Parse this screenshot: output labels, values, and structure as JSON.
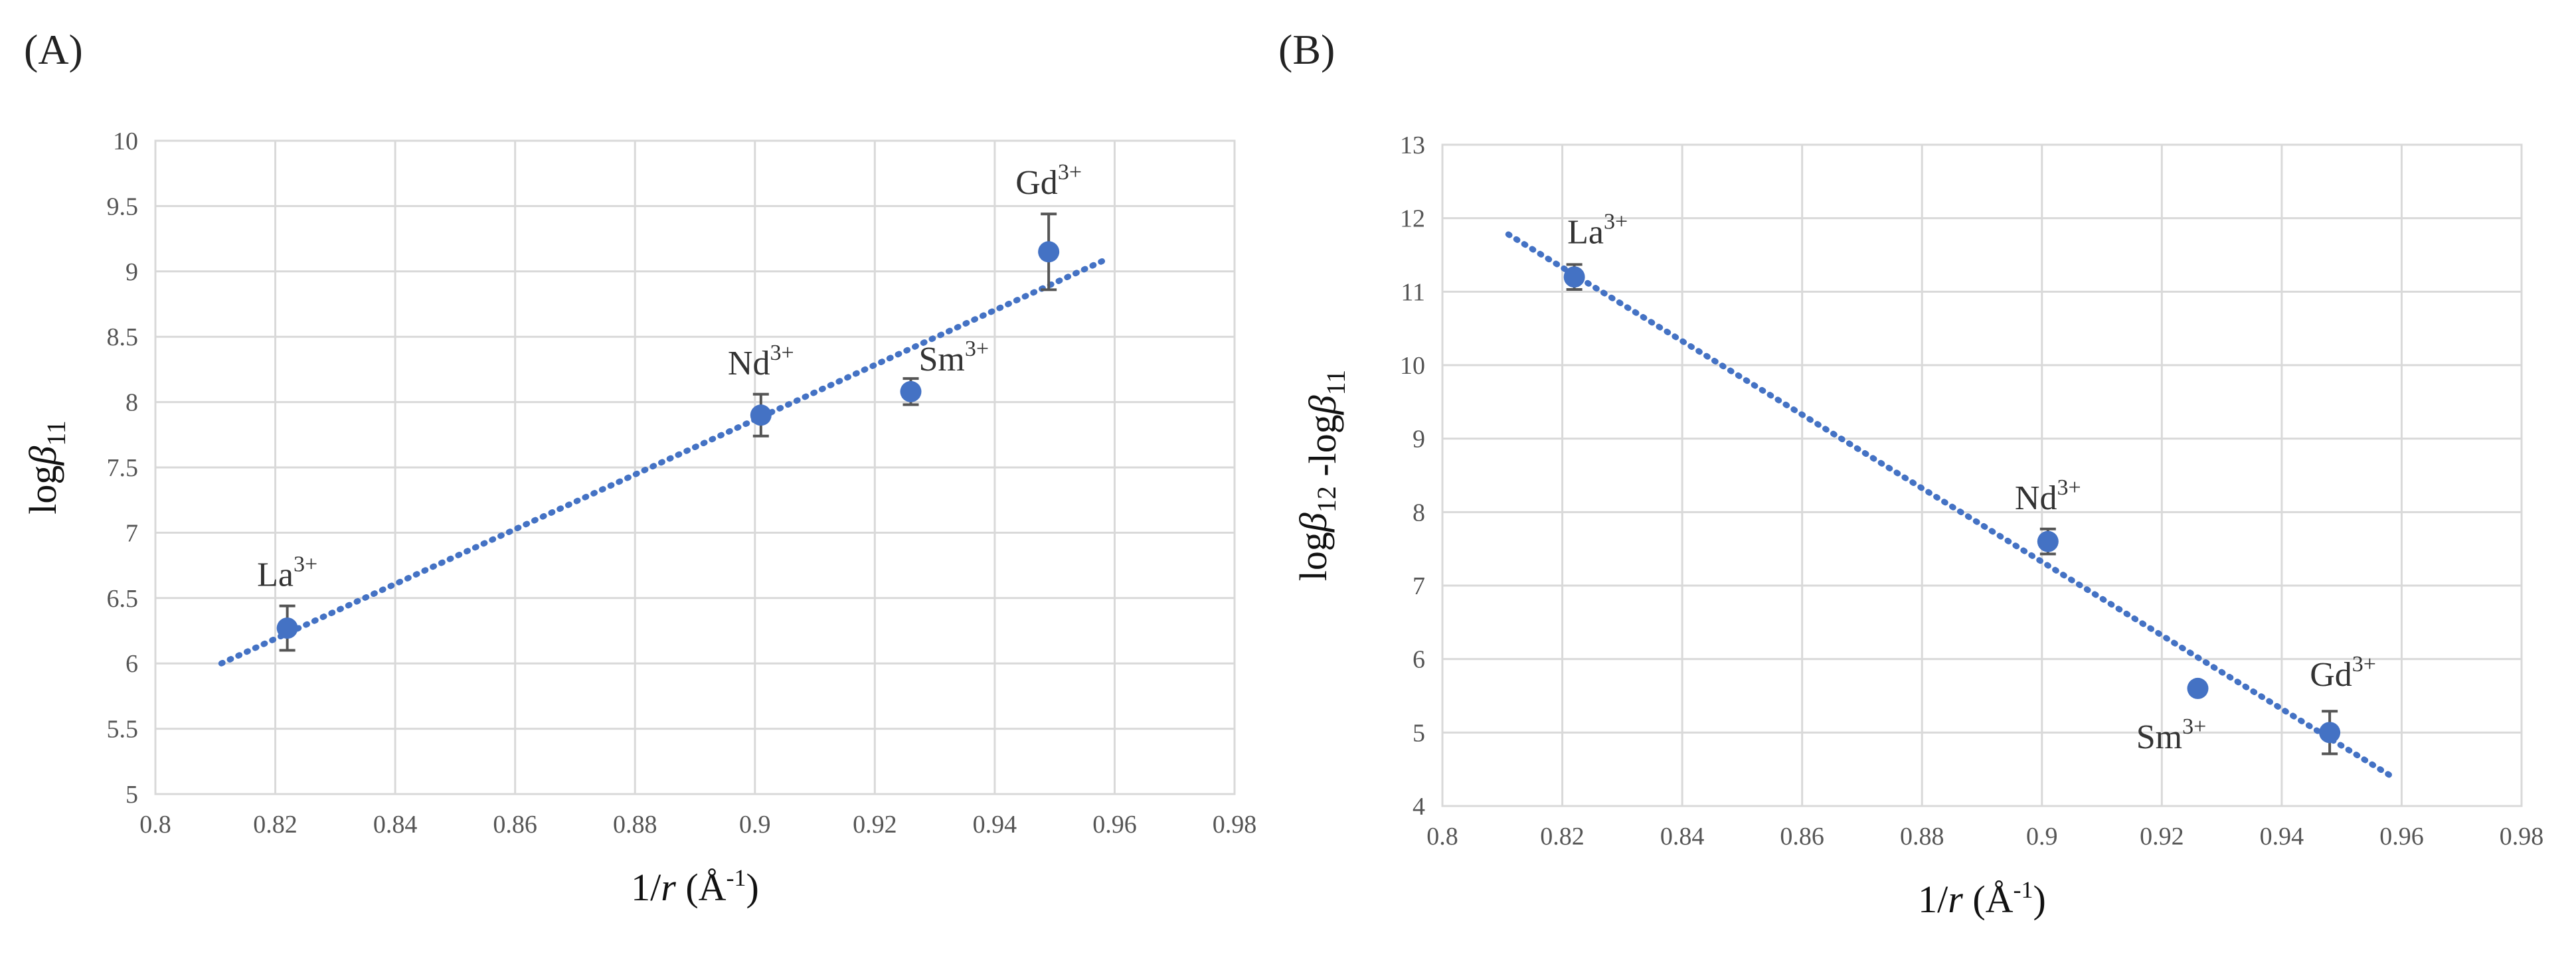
{
  "panels": {
    "a": {
      "label": "(A)"
    },
    "b": {
      "label": "(B)"
    }
  },
  "colors": {
    "series": "#4472c4",
    "grid": "#d9d9d9",
    "error_bar": "#555555"
  },
  "chart_data": [
    {
      "type": "scatter",
      "id": "A",
      "xlabel": "1/r (Å-1)",
      "ylabel": "logβ11",
      "xlim": [
        0.8,
        0.98
      ],
      "ylim": [
        5,
        10
      ],
      "x_ticks": [
        "0.8",
        "0.82",
        "0.84",
        "0.86",
        "0.88",
        "0.9",
        "0.92",
        "0.94",
        "0.96",
        "0.98"
      ],
      "y_ticks": [
        "5",
        "5.5",
        "6",
        "6.5",
        "7",
        "7.5",
        "8",
        "8.5",
        "9",
        "9.5",
        "10"
      ],
      "grid": true,
      "points": [
        {
          "label": "La",
          "charge": "3+",
          "x": 0.822,
          "y": 6.27,
          "err": 0.17
        },
        {
          "label": "Nd",
          "charge": "3+",
          "x": 0.901,
          "y": 7.9,
          "err": 0.16
        },
        {
          "label": "Sm",
          "charge": "3+",
          "x": 0.926,
          "y": 8.08,
          "err": 0.1
        },
        {
          "label": "Gd",
          "charge": "3+",
          "x": 0.949,
          "y": 9.15,
          "err": 0.29
        }
      ],
      "trendline": {
        "type": "linear",
        "x": [
          0.811,
          0.958
        ],
        "y": [
          6.0,
          9.08
        ]
      }
    },
    {
      "type": "scatter",
      "id": "B",
      "xlabel": "1/r (Å-1)",
      "ylabel": "logβ12 -logβ11",
      "xlim": [
        0.8,
        0.98
      ],
      "ylim": [
        4,
        13
      ],
      "x_ticks": [
        "0.8",
        "0.82",
        "0.84",
        "0.86",
        "0.88",
        "0.9",
        "0.92",
        "0.94",
        "0.96",
        "0.98"
      ],
      "y_ticks": [
        "4",
        "5",
        "6",
        "7",
        "8",
        "9",
        "10",
        "11",
        "12",
        "13"
      ],
      "grid": true,
      "points": [
        {
          "label": "La",
          "charge": "3+",
          "x": 0.822,
          "y": 11.2,
          "err": 0.17
        },
        {
          "label": "Nd",
          "charge": "3+",
          "x": 0.901,
          "y": 7.6,
          "err": 0.17
        },
        {
          "label": "Sm",
          "charge": "3+",
          "x": 0.926,
          "y": 5.6,
          "err": 0.08
        },
        {
          "label": "Gd",
          "charge": "3+",
          "x": 0.948,
          "y": 5.0,
          "err": 0.29
        }
      ],
      "trendline": {
        "type": "linear",
        "x": [
          0.811,
          0.958
        ],
        "y": [
          11.78,
          4.42
        ]
      }
    }
  ]
}
